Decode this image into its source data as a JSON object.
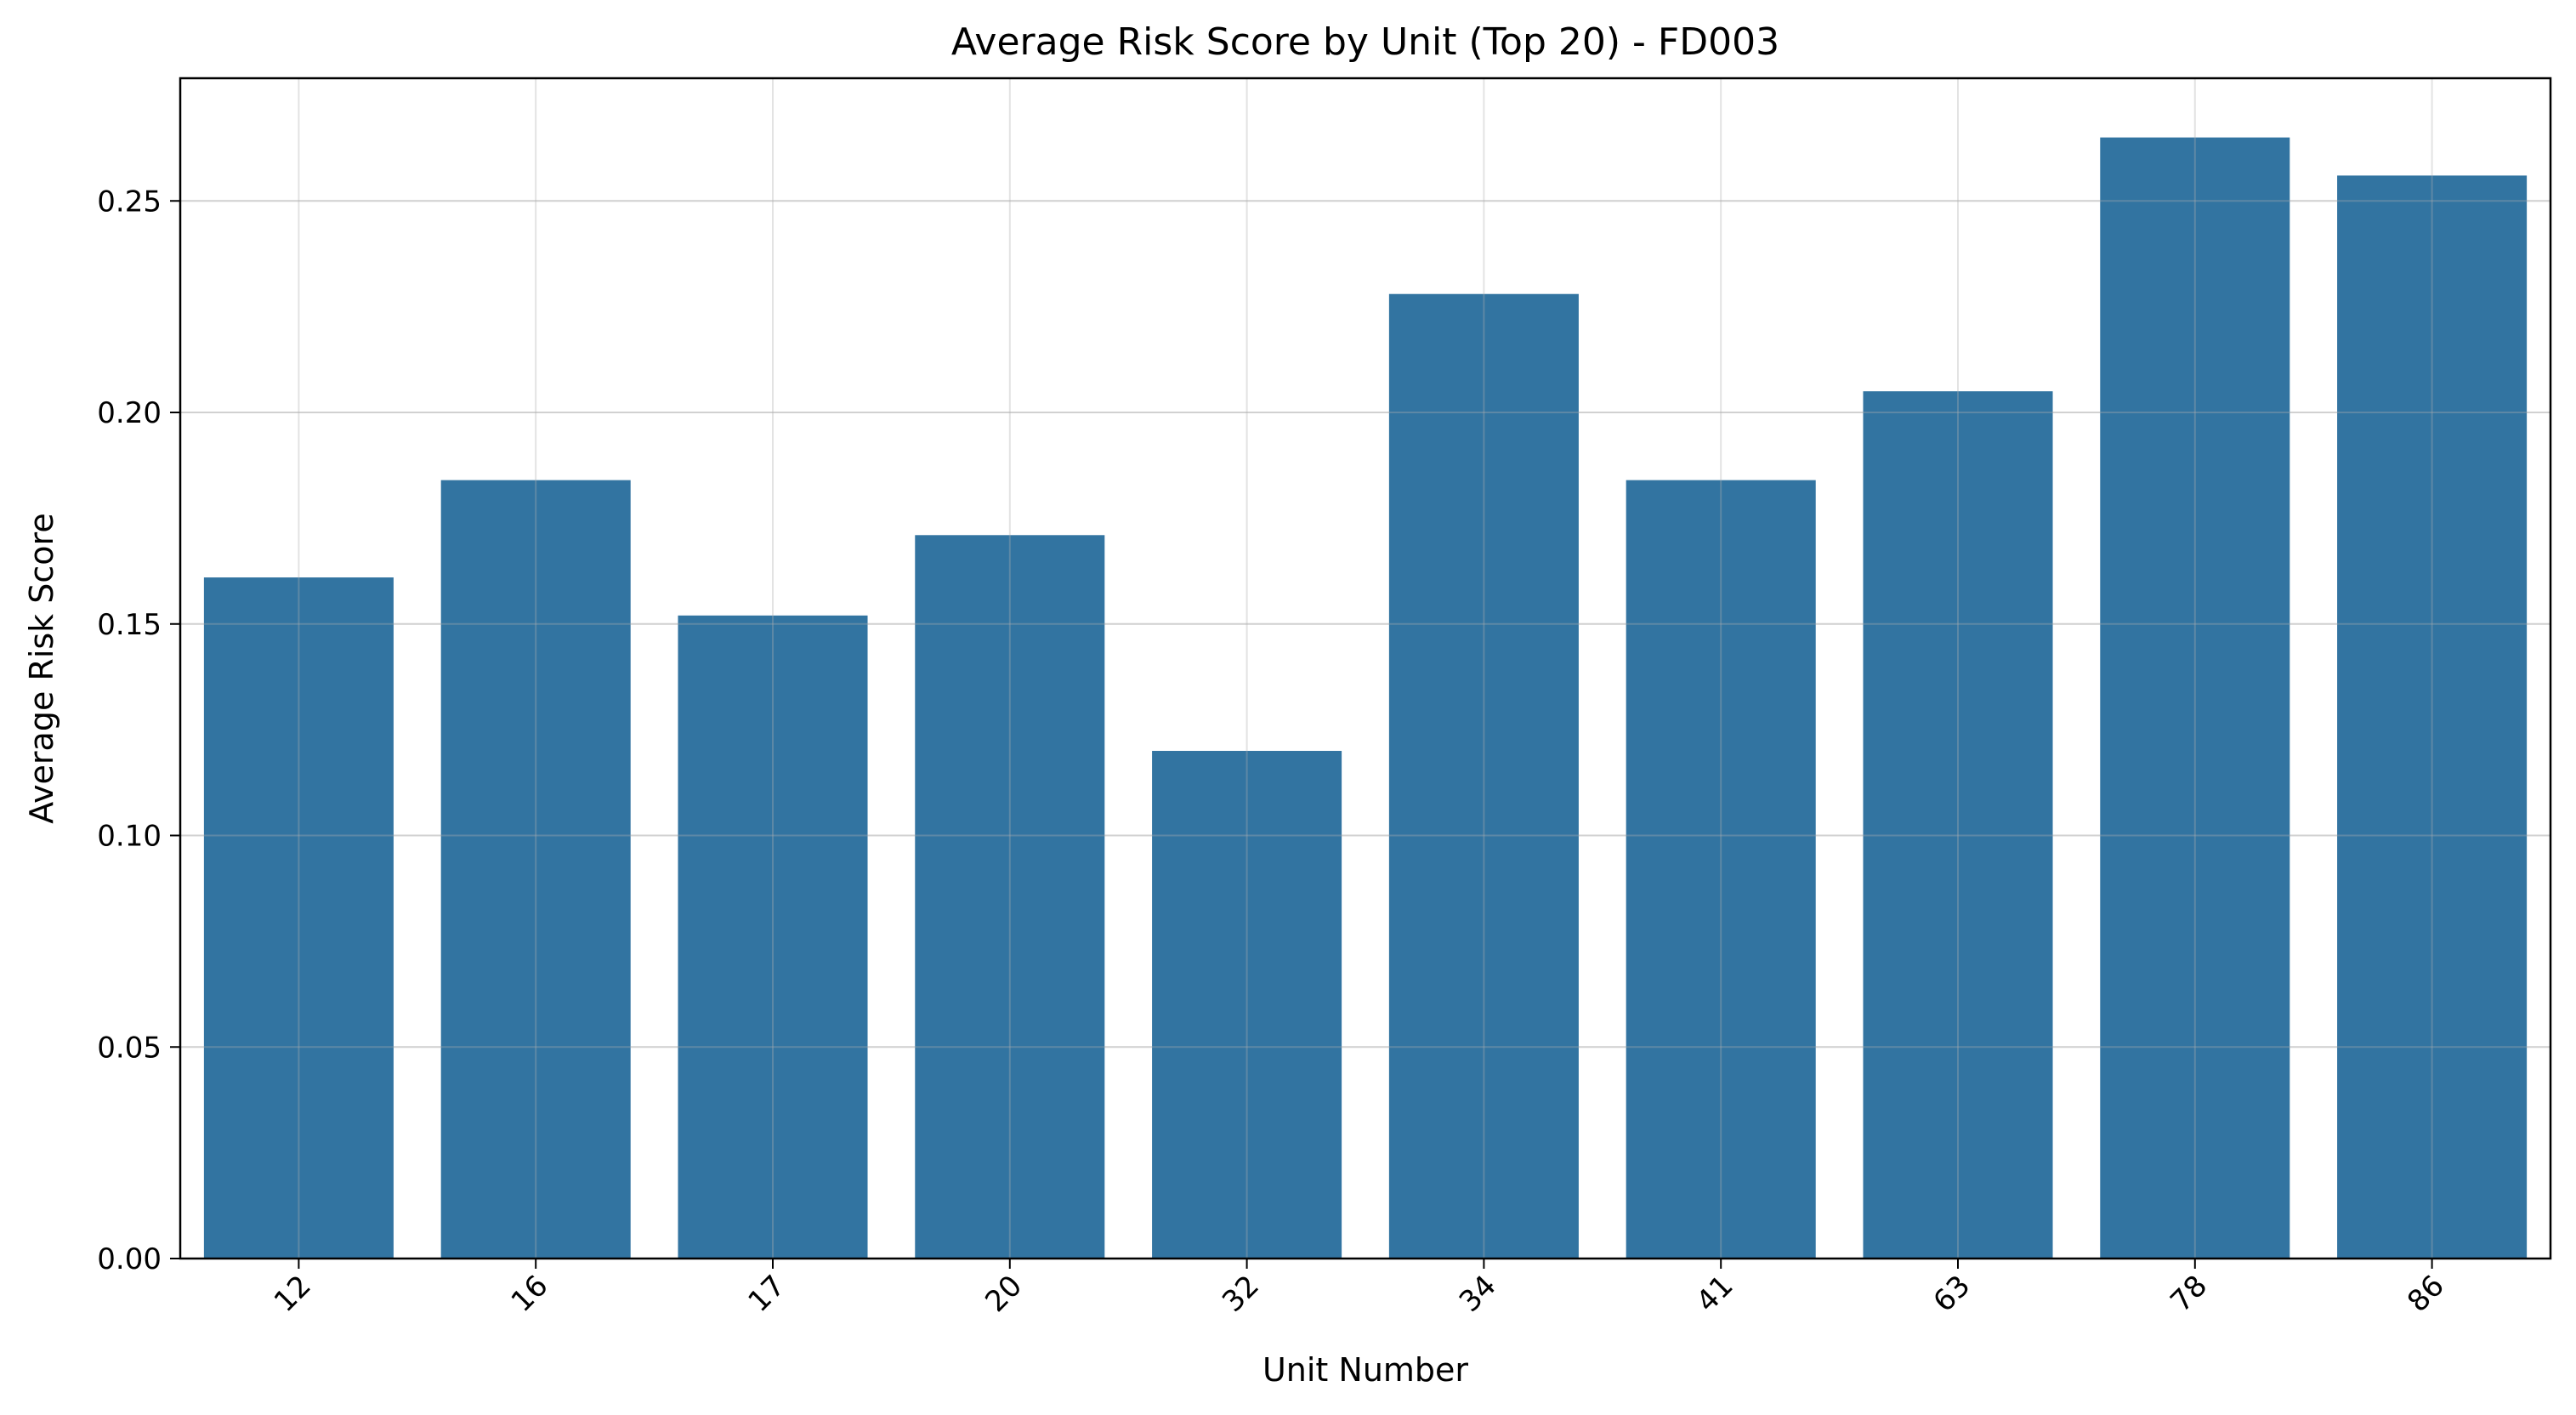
{
  "chart_data": {
    "type": "bar",
    "title": "Average Risk Score by Unit (Top 20) - FD003",
    "xlabel": "Unit Number",
    "ylabel": "Average Risk Score",
    "categories": [
      "12",
      "16",
      "17",
      "20",
      "32",
      "34",
      "41",
      "63",
      "78",
      "86"
    ],
    "values": [
      0.161,
      0.184,
      0.152,
      0.171,
      0.12,
      0.228,
      0.184,
      0.205,
      0.265,
      0.256
    ],
    "ylim": [
      0,
      0.279
    ],
    "yticks": [
      0.0,
      0.05,
      0.1,
      0.15,
      0.2,
      0.25
    ],
    "ytick_labels": [
      "0.00",
      "0.05",
      "0.10",
      "0.15",
      "0.20",
      "0.25"
    ],
    "bar_color": "#3274a1",
    "grid": true,
    "xtick_rotation": -45
  }
}
